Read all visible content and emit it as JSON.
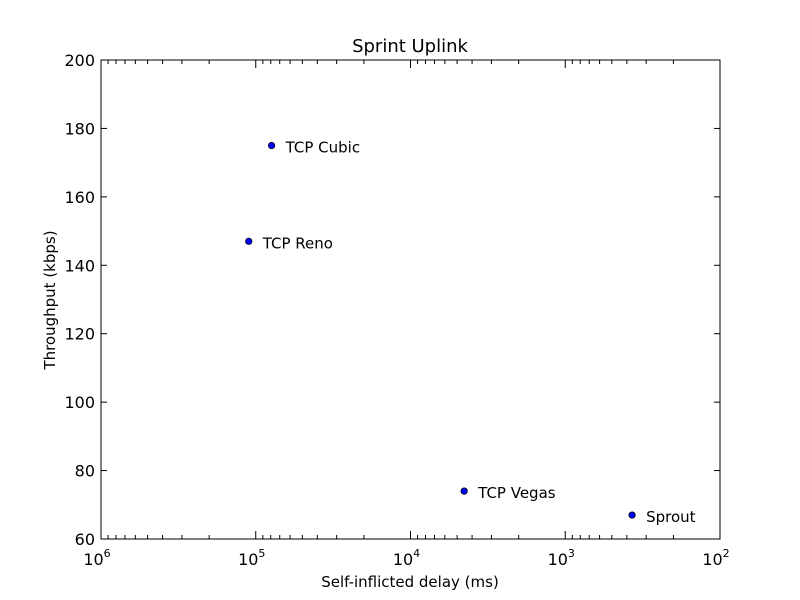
{
  "chart_data": {
    "type": "scatter",
    "title": "Sprint Uplink",
    "xlabel": "Self-inflicted delay (ms)",
    "ylabel": "Throughput (kbps)",
    "x_scale": "log",
    "x_axis_reversed": true,
    "xlim": [
      1000000,
      100
    ],
    "ylim": [
      60,
      200
    ],
    "y_ticks": [
      60,
      80,
      100,
      120,
      140,
      160,
      180,
      200
    ],
    "x_ticks": [
      {
        "value": 1000000,
        "base": "10",
        "exp": "6"
      },
      {
        "value": 100000,
        "base": "10",
        "exp": "5"
      },
      {
        "value": 10000,
        "base": "10",
        "exp": "4"
      },
      {
        "value": 1000,
        "base": "10",
        "exp": "3"
      },
      {
        "value": 100,
        "base": "10",
        "exp": "2"
      }
    ],
    "grid": false,
    "marker_color": "#0000ff",
    "points": [
      {
        "label": "TCP Cubic",
        "x": 79000,
        "y": 175
      },
      {
        "label": "TCP Reno",
        "x": 111000,
        "y": 147
      },
      {
        "label": "TCP Vegas",
        "x": 4500,
        "y": 74
      },
      {
        "label": "Sprout",
        "x": 370,
        "y": 67
      }
    ]
  }
}
